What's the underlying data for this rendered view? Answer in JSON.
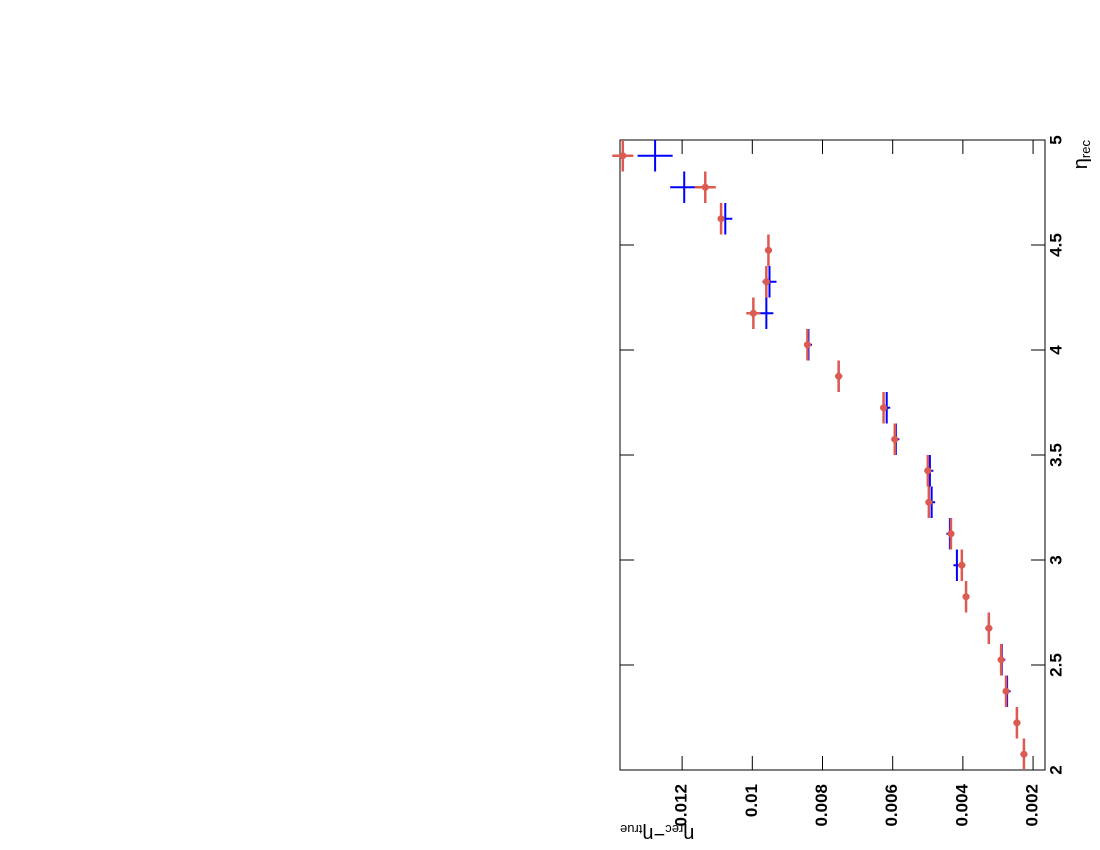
{
  "chart_data": {
    "type": "errorbar",
    "x_label": {
      "symbol": "η",
      "sub": "rec"
    },
    "y_label": {
      "parts": [
        {
          "symbol": "η",
          "sub": "rec"
        },
        {
          "symbol": "−η",
          "sub": "true"
        }
      ]
    },
    "x": [
      2.075,
      2.225,
      2.375,
      2.525,
      2.675,
      2.825,
      2.975,
      3.125,
      3.275,
      3.425,
      3.575,
      3.725,
      3.875,
      4.025,
      4.175,
      4.325,
      4.475,
      4.625,
      4.775,
      4.925
    ],
    "series": [
      {
        "color": "#0000ff",
        "marker": false,
        "values": [
          0.00226,
          0.00246,
          0.00274,
          0.00289,
          0.00326,
          0.00391,
          0.00417,
          0.00437,
          0.00489,
          0.00494,
          0.00591,
          0.00617,
          0.00754,
          0.0084,
          0.0096,
          0.00951,
          0.00954,
          0.01077,
          0.01194,
          0.01277
        ],
        "errors": [
          0.0001,
          0.0001,
          0.0001,
          0.0001,
          0.0001,
          0.0001,
          0.0001,
          0.0001,
          0.0001,
          0.0001,
          0.0001,
          0.0001,
          0.0001,
          0.0001,
          0.0002,
          0.0002,
          0.0001,
          0.0002,
          0.0004,
          0.0005
        ]
      },
      {
        "color": "#dd5a52",
        "marker": true,
        "values": [
          0.00226,
          0.00246,
          0.00277,
          0.00291,
          0.00326,
          0.00391,
          0.00403,
          0.00434,
          0.00497,
          0.005,
          0.00594,
          0.00626,
          0.00754,
          0.00843,
          0.00997,
          0.0096,
          0.00954,
          0.01089,
          0.01134,
          0.01369
        ],
        "errors": [
          0.0001,
          0.0001,
          0.0001,
          0.0001,
          0.0001,
          0.0001,
          0.0001,
          0.0001,
          0.0001,
          0.0001,
          0.0001,
          0.0001,
          0.0001,
          0.0001,
          0.0002,
          0.0001,
          0.0001,
          0.0001,
          0.0003,
          0.0003
        ]
      }
    ],
    "xlim": [
      2,
      5
    ],
    "xticks": [
      2,
      2.5,
      3,
      3.5,
      4,
      4.5,
      5
    ],
    "ylim": [
      0.00166,
      0.01377
    ],
    "yticks": [
      0.002,
      0.004,
      0.006,
      0.008,
      0.01,
      0.012
    ],
    "grid": false
  }
}
